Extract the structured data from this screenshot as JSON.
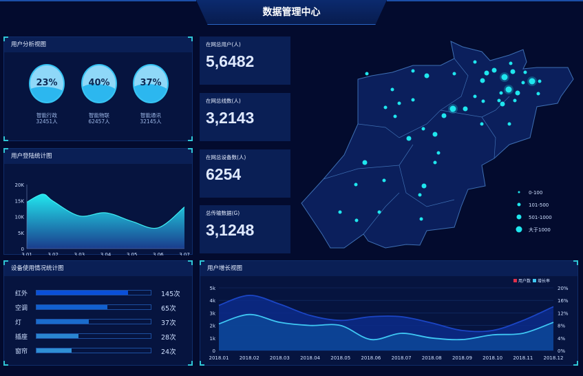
{
  "header": {
    "title": "数据管理中心"
  },
  "user_analysis": {
    "title": "用户分析视图",
    "items": [
      {
        "percent": "23%",
        "name": "智能行政",
        "count": "32451人",
        "level": 0.23
      },
      {
        "percent": "40%",
        "name": "智能物联",
        "count": "62457人",
        "level": 0.4
      },
      {
        "percent": "37%",
        "name": "智能通讯",
        "count": "32145人",
        "level": 0.37
      }
    ]
  },
  "kpis": [
    {
      "label": "在网总用户(人)",
      "value": "5,6482"
    },
    {
      "label": "在网总线数(人)",
      "value": "3,2143"
    },
    {
      "label": "在网总设备数(人)",
      "value": "6254"
    },
    {
      "label": "总传输数据(G)",
      "value": "3,1248"
    }
  ],
  "map": {
    "legend": [
      {
        "label": "0-100"
      },
      {
        "label": "101-500"
      },
      {
        "label": "501-1000"
      },
      {
        "label": "大于1000"
      }
    ],
    "dot_color": "#1fe6ee"
  },
  "login_chart": {
    "title": "用户登陆统计图",
    "chart_data": {
      "type": "area",
      "categories": [
        "3.01",
        "3.02",
        "3.03",
        "3.04",
        "3.05",
        "3.06",
        "3.07"
      ],
      "values": [
        14500,
        14800,
        10200,
        11200,
        8500,
        6500,
        13000
      ],
      "ylim": [
        0,
        20000
      ],
      "yticks": [
        "0",
        "5K",
        "10K",
        "15K",
        "20K"
      ]
    }
  },
  "device_usage": {
    "title": "设备使用情况统计图",
    "chart_data": {
      "type": "bar",
      "categories": [
        "红外",
        "空调",
        "灯",
        "插座",
        "窗帘"
      ],
      "values": [
        "145次",
        "65次",
        "37次",
        "28次",
        "24次"
      ],
      "fill": [
        0.8,
        0.62,
        0.46,
        0.37,
        0.31
      ],
      "colors": [
        "#0a4fd8",
        "#1160d0",
        "#1a6ccc",
        "#2a86d0",
        "#2f8fd4"
      ]
    }
  },
  "growth_chart": {
    "title": "用户增长视图",
    "chart_data": {
      "type": "area",
      "categories": [
        "2018.01",
        "2018.02",
        "2018.03",
        "2018.04",
        "2018.05",
        "2018.06",
        "2018.07",
        "2018.08",
        "2018.09",
        "2018.10",
        "2018.11",
        "2018.12"
      ],
      "series": [
        {
          "name": "用户数",
          "axis": "left",
          "values": [
            3.6,
            4.4,
            3.7,
            2.8,
            2.4,
            2.7,
            2.7,
            2.2,
            1.6,
            1.6,
            2.4,
            3.5
          ],
          "color": "#1b45c4",
          "legend_color": "#e0304a"
        },
        {
          "name": "增长率",
          "axis": "right",
          "values": [
            8.5,
            11.5,
            9,
            8,
            8,
            3.5,
            5.5,
            4,
            3.5,
            5,
            5.5,
            9
          ],
          "color": "#3fc8f4",
          "legend_color": "#3fc8f4"
        }
      ],
      "yleft": {
        "ticks": [
          "0",
          "1k",
          "2k",
          "3k",
          "4k",
          "5k"
        ],
        "range": [
          0,
          5
        ]
      },
      "yright": {
        "ticks": [
          "0%",
          "4%",
          "8%",
          "12%",
          "16%",
          "20%"
        ],
        "range": [
          0,
          20
        ]
      }
    }
  }
}
